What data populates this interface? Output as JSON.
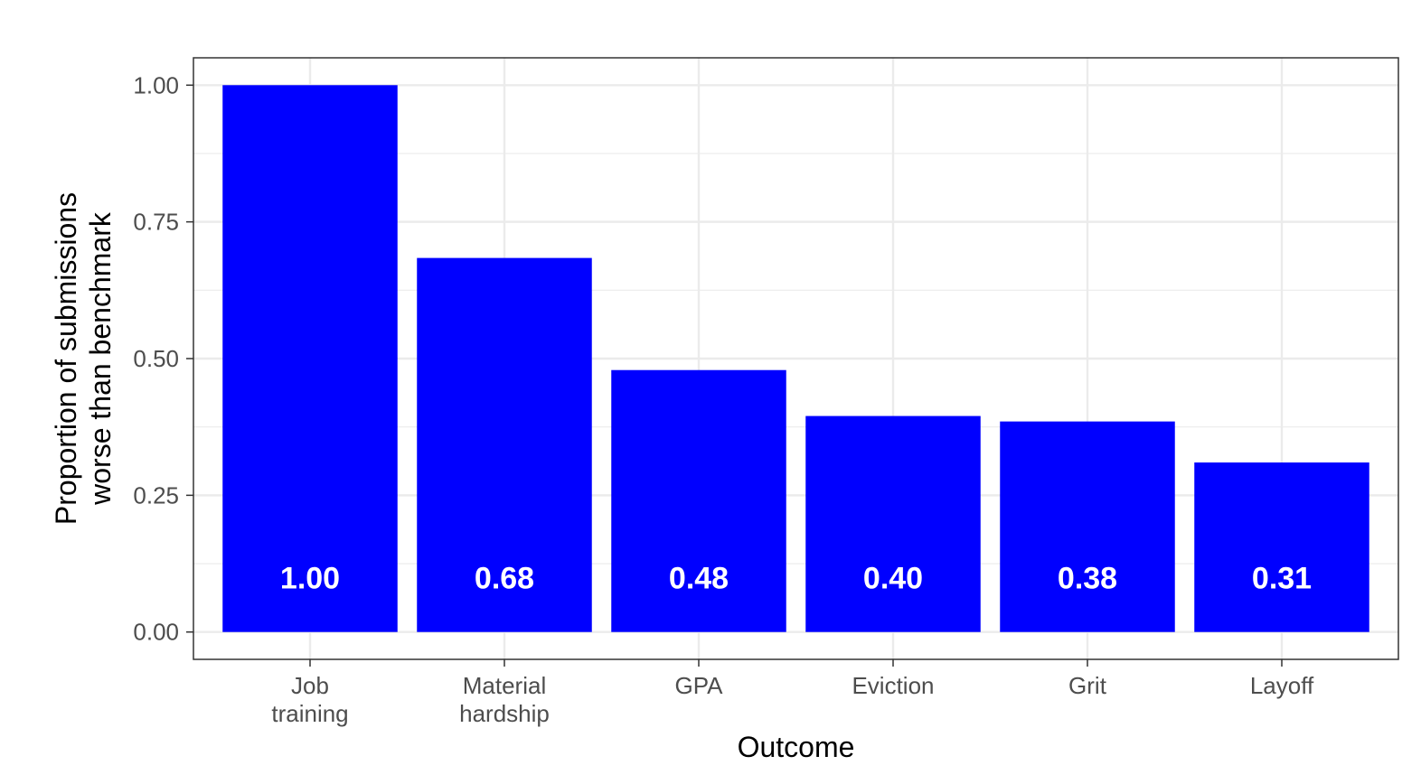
{
  "chart_data": {
    "type": "bar",
    "categories": [
      [
        "Job",
        "training"
      ],
      [
        "Material",
        "hardship"
      ],
      [
        "GPA"
      ],
      [
        "Eviction"
      ],
      [
        "Grit"
      ],
      [
        "Layoff"
      ]
    ],
    "values": [
      1.0,
      0.684,
      0.479,
      0.395,
      0.385,
      0.31
    ],
    "value_labels": [
      "1.00",
      "0.68",
      "0.48",
      "0.40",
      "0.38",
      "0.31"
    ],
    "title": "",
    "xlabel": "Outcome",
    "ylabel_lines": [
      "Proportion of submissions",
      "worse than benchmark"
    ],
    "ylim": [
      -0.05,
      1.05
    ],
    "yticks": [
      0.0,
      0.25,
      0.5,
      0.75,
      1.0
    ],
    "ytick_labels": [
      "0.00",
      "0.25",
      "0.50",
      "0.75",
      "1.00"
    ],
    "grid": true,
    "bar_color": "#0000FF",
    "label_color": "#FFFFFF",
    "grid_color": "#EBEBEB",
    "panel_border_color": "#333333"
  }
}
